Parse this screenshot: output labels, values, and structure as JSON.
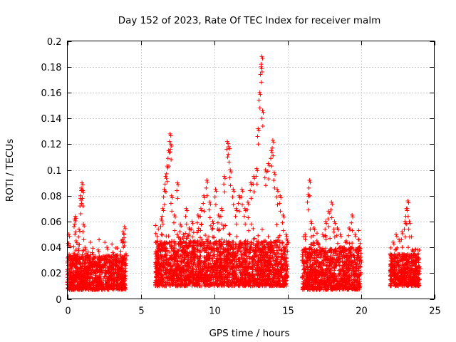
{
  "chart_data": {
    "type": "scatter",
    "title": "Day 152 of 2023, Rate Of TEC Index for receiver malm",
    "xlabel": "GPS time / hours",
    "ylabel": "ROTI / TECUs",
    "xlim": [
      0,
      25
    ],
    "ylim": [
      0,
      0.2
    ],
    "x_ticks": [
      0,
      5,
      10,
      15,
      20,
      25
    ],
    "y_ticks": [
      0,
      0.02,
      0.04,
      0.06,
      0.08,
      0.1,
      0.12,
      0.14,
      0.16,
      0.18,
      0.2
    ],
    "x_tick_labels": [
      "0",
      "5",
      "10",
      "15",
      "20",
      "25"
    ],
    "y_tick_labels": [
      "0",
      "0.02",
      "0.04",
      "0.06",
      "0.08",
      "0.1",
      "0.12",
      "0.14",
      "0.16",
      "0.18",
      "0.2"
    ],
    "grid": true,
    "marker": "+",
    "marker_color": "#ff0000",
    "series": [
      {
        "values_summary": "dense ROTI points grouped into observation windows",
        "points": [
          [
            0.0,
            0.021
          ],
          [
            0.05,
            0.043
          ],
          [
            0.1,
            0.05
          ],
          [
            0.2,
            0.028
          ],
          [
            0.3,
            0.018
          ],
          [
            0.4,
            0.035
          ],
          [
            0.5,
            0.062
          ],
          [
            0.55,
            0.064
          ],
          [
            0.6,
            0.045
          ],
          [
            0.7,
            0.03
          ],
          [
            0.8,
            0.054
          ],
          [
            0.9,
            0.078
          ],
          [
            0.95,
            0.086
          ],
          [
            1.0,
            0.09
          ],
          [
            1.05,
            0.084
          ],
          [
            1.1,
            0.058
          ],
          [
            1.2,
            0.04
          ],
          [
            1.3,
            0.022
          ],
          [
            1.5,
            0.03
          ],
          [
            1.7,
            0.036
          ],
          [
            1.9,
            0.028
          ],
          [
            2.1,
            0.038
          ],
          [
            2.3,
            0.025
          ],
          [
            2.5,
            0.033
          ],
          [
            2.7,
            0.04
          ],
          [
            2.9,
            0.031
          ],
          [
            3.1,
            0.036
          ],
          [
            3.3,
            0.028
          ],
          [
            3.5,
            0.024
          ],
          [
            3.7,
            0.045
          ],
          [
            3.8,
            0.052
          ],
          [
            3.9,
            0.056
          ],
          [
            4.0,
            0.035
          ],
          [
            6.0,
            0.025
          ],
          [
            6.2,
            0.04
          ],
          [
            6.4,
            0.062
          ],
          [
            6.5,
            0.07
          ],
          [
            6.6,
            0.085
          ],
          [
            6.7,
            0.095
          ],
          [
            6.8,
            0.103
          ],
          [
            6.9,
            0.115
          ],
          [
            7.0,
            0.128
          ],
          [
            7.05,
            0.12
          ],
          [
            7.1,
            0.08
          ],
          [
            7.3,
            0.065
          ],
          [
            7.5,
            0.09
          ],
          [
            7.7,
            0.058
          ],
          [
            7.9,
            0.05
          ],
          [
            8.1,
            0.07
          ],
          [
            8.3,
            0.055
          ],
          [
            8.5,
            0.06
          ],
          [
            8.7,
            0.045
          ],
          [
            8.9,
            0.065
          ],
          [
            9.1,
            0.07
          ],
          [
            9.3,
            0.08
          ],
          [
            9.5,
            0.092
          ],
          [
            9.7,
            0.075
          ],
          [
            9.9,
            0.06
          ],
          [
            10.1,
            0.085
          ],
          [
            10.3,
            0.065
          ],
          [
            10.5,
            0.07
          ],
          [
            10.7,
            0.095
          ],
          [
            10.9,
            0.122
          ],
          [
            11.0,
            0.118
          ],
          [
            11.1,
            0.1
          ],
          [
            11.3,
            0.085
          ],
          [
            11.5,
            0.07
          ],
          [
            11.7,
            0.08
          ],
          [
            11.9,
            0.085
          ],
          [
            12.1,
            0.07
          ],
          [
            12.3,
            0.075
          ],
          [
            12.5,
            0.09
          ],
          [
            12.7,
            0.095
          ],
          [
            12.9,
            0.101
          ],
          [
            13.0,
            0.132
          ],
          [
            13.1,
            0.16
          ],
          [
            13.2,
            0.18
          ],
          [
            13.25,
            0.188
          ],
          [
            13.3,
            0.146
          ],
          [
            13.5,
            0.1
          ],
          [
            13.7,
            0.105
          ],
          [
            13.9,
            0.115
          ],
          [
            14.0,
            0.123
          ],
          [
            14.1,
            0.098
          ],
          [
            14.3,
            0.085
          ],
          [
            14.5,
            0.08
          ],
          [
            14.7,
            0.065
          ],
          [
            14.9,
            0.05
          ],
          [
            15.0,
            0.045
          ],
          [
            16.0,
            0.03
          ],
          [
            16.2,
            0.05
          ],
          [
            16.4,
            0.081
          ],
          [
            16.5,
            0.092
          ],
          [
            16.6,
            0.06
          ],
          [
            16.8,
            0.055
          ],
          [
            17.0,
            0.045
          ],
          [
            17.2,
            0.04
          ],
          [
            17.4,
            0.05
          ],
          [
            17.6,
            0.06
          ],
          [
            17.8,
            0.068
          ],
          [
            18.0,
            0.075
          ],
          [
            18.2,
            0.06
          ],
          [
            18.4,
            0.055
          ],
          [
            18.6,
            0.05
          ],
          [
            18.8,
            0.04
          ],
          [
            19.0,
            0.045
          ],
          [
            19.2,
            0.055
          ],
          [
            19.4,
            0.065
          ],
          [
            19.6,
            0.05
          ],
          [
            19.8,
            0.035
          ],
          [
            20.0,
            0.03
          ],
          [
            22.0,
            0.035
          ],
          [
            22.2,
            0.044
          ],
          [
            22.4,
            0.05
          ],
          [
            22.6,
            0.046
          ],
          [
            22.8,
            0.052
          ],
          [
            23.0,
            0.06
          ],
          [
            23.1,
            0.07
          ],
          [
            23.2,
            0.076
          ],
          [
            23.3,
            0.06
          ],
          [
            23.5,
            0.038
          ],
          [
            23.7,
            0.03
          ],
          [
            23.9,
            0.032
          ],
          [
            24.0,
            0.025
          ]
        ]
      }
    ],
    "bands": [
      {
        "x_start": 0.0,
        "x_end": 4.0,
        "y_low": 0.007,
        "y_high": 0.034
      },
      {
        "x_start": 6.0,
        "x_end": 15.0,
        "y_low": 0.01,
        "y_high": 0.045
      },
      {
        "x_start": 16.0,
        "x_end": 20.0,
        "y_low": 0.007,
        "y_high": 0.04
      },
      {
        "x_start": 22.0,
        "x_end": 24.0,
        "y_low": 0.01,
        "y_high": 0.035
      }
    ]
  }
}
